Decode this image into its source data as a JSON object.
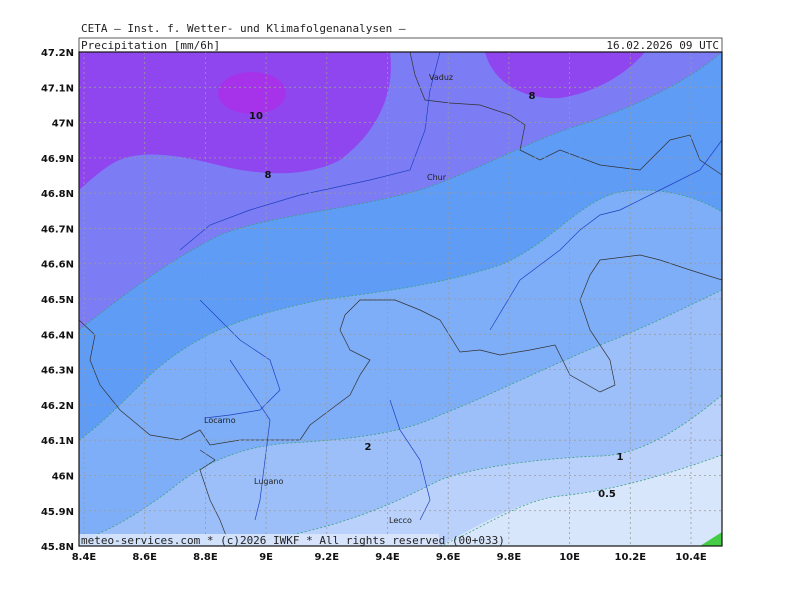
{
  "header": {
    "institute": "CETA — Inst. f. Wetter- und Klimafolgenanalysen —",
    "product": "Precipitation [mm/6h]",
    "valid_time": "16.02.2026 09 UTC"
  },
  "map": {
    "lon_labels": [
      "8.4E",
      "8.6E",
      "8.8E",
      "9E",
      "9.2E",
      "9.4E",
      "9.6E",
      "9.8E",
      "10E",
      "10.2E",
      "10.4E"
    ],
    "lat_labels": [
      "47.2N",
      "47.1N",
      "47N",
      "46.9N",
      "46.8N",
      "46.7N",
      "46.6N",
      "46.5N",
      "46.4N",
      "46.3N",
      "46.2N",
      "46.1N",
      "46N",
      "45.9N",
      "45.8N"
    ],
    "contour_labels": [
      "10",
      "8",
      "8",
      "2",
      "1",
      "0.5"
    ],
    "places": [
      "Vaduz",
      "Chur",
      "Locarno",
      "Lugano",
      "Lecco"
    ]
  },
  "footer": "meteo-services.com * (c)2026 IWKF * All rights reserved (00+033)"
}
